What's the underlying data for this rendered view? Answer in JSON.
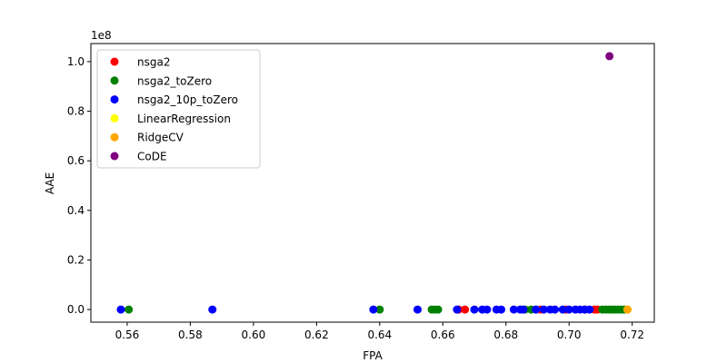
{
  "chart_data": {
    "type": "scatter",
    "title": "",
    "xlabel": "FPA",
    "ylabel": "AAE",
    "y_offset_label": "1e8",
    "xlim": [
      0.5485,
      0.727
    ],
    "ylim": [
      -0.051,
      1.073
    ],
    "xticks": [
      0.56,
      0.58,
      0.6,
      0.62,
      0.64,
      0.66,
      0.68,
      0.7,
      0.72
    ],
    "xtick_labels": [
      "0.56",
      "0.58",
      "0.60",
      "0.62",
      "0.64",
      "0.66",
      "0.68",
      "0.70",
      "0.72"
    ],
    "yticks": [
      0.0,
      0.2,
      0.4,
      0.6,
      0.8,
      1.0
    ],
    "ytick_labels": [
      "0.0",
      "0.2",
      "0.4",
      "0.6",
      "0.8",
      "1.0"
    ],
    "grid": false,
    "legend_position": "upper-left",
    "series": [
      {
        "name": "nsga2",
        "color": "#ff0000",
        "points": [
          [
            0.665,
            0
          ],
          [
            0.667,
            0
          ],
          [
            0.691,
            0
          ],
          [
            0.699,
            0
          ],
          [
            0.705,
            0
          ],
          [
            0.708,
            0
          ],
          [
            0.709,
            0
          ]
        ]
      },
      {
        "name": "nsga2_toZero",
        "color": "#008000",
        "points": [
          [
            0.5605,
            0
          ],
          [
            0.64,
            0
          ],
          [
            0.6565,
            0
          ],
          [
            0.6575,
            0
          ],
          [
            0.6585,
            0
          ],
          [
            0.686,
            0
          ],
          [
            0.688,
            0
          ],
          [
            0.6895,
            0
          ],
          [
            0.7105,
            0
          ],
          [
            0.7115,
            0
          ],
          [
            0.7125,
            0
          ],
          [
            0.7135,
            0
          ],
          [
            0.7145,
            0
          ],
          [
            0.7155,
            0
          ],
          [
            0.7165,
            0
          ],
          [
            0.7175,
            0
          ]
        ]
      },
      {
        "name": "nsga2_10p_toZero",
        "color": "#0000ff",
        "points": [
          [
            0.558,
            0
          ],
          [
            0.587,
            0
          ],
          [
            0.638,
            0
          ],
          [
            0.652,
            0
          ],
          [
            0.6645,
            0
          ],
          [
            0.67,
            0
          ],
          [
            0.6725,
            0
          ],
          [
            0.674,
            0
          ],
          [
            0.677,
            0
          ],
          [
            0.6785,
            0
          ],
          [
            0.6825,
            0
          ],
          [
            0.6845,
            0
          ],
          [
            0.6855,
            0
          ],
          [
            0.6895,
            0
          ],
          [
            0.692,
            0
          ],
          [
            0.694,
            0
          ],
          [
            0.6955,
            0
          ],
          [
            0.698,
            0
          ],
          [
            0.7,
            0
          ],
          [
            0.702,
            0
          ],
          [
            0.7035,
            0
          ],
          [
            0.705,
            0
          ],
          [
            0.7065,
            0
          ]
        ]
      },
      {
        "name": "LinearRegression",
        "color": "#ffff00",
        "points": [
          [
            0.7185,
            0
          ]
        ]
      },
      {
        "name": "RidgeCV",
        "color": "#ffa500",
        "points": [
          [
            0.7185,
            0
          ]
        ]
      },
      {
        "name": "CoDE",
        "color": "#800080",
        "points": [
          [
            0.7128,
            1.022
          ]
        ]
      }
    ]
  }
}
